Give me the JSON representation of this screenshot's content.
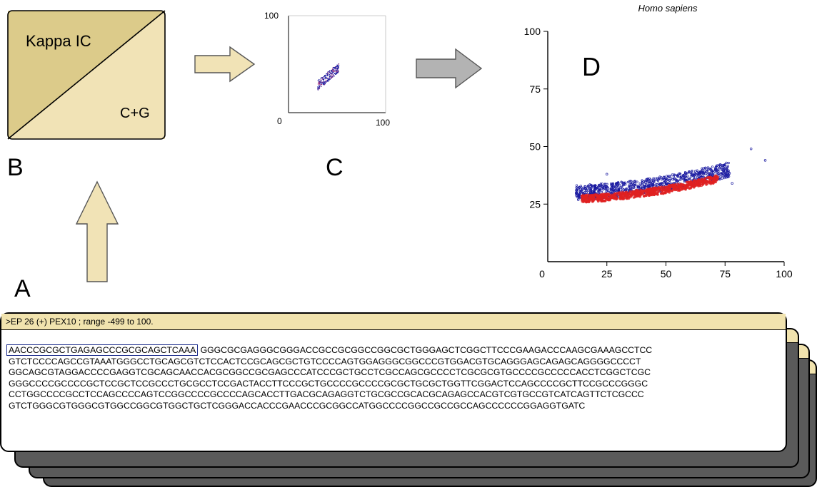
{
  "panels": {
    "a": "A",
    "b": "B",
    "c": "C",
    "d": "D"
  },
  "box_b": {
    "top_label": "Kappa IC",
    "bottom_label": "C+G",
    "fill_top": "#dccb8a",
    "fill_bottom": "#f1e3b6"
  },
  "small_plot": {
    "y_max_label": "100",
    "x_max_label": "100",
    "origin_label": "0"
  },
  "chart_data": {
    "type": "scatter",
    "title": "Homo sapiens",
    "xlim": [
      0,
      100
    ],
    "ylim": [
      0,
      100
    ],
    "x_ticks": [
      "0",
      "25",
      "50",
      "75",
      "100"
    ],
    "y_ticks": [
      "25",
      "50",
      "75",
      "100"
    ],
    "series": [
      {
        "color": "#1a1aa0",
        "points": [
          [
            12,
            31
          ],
          [
            20,
            32
          ],
          [
            30,
            31
          ],
          [
            40,
            32
          ],
          [
            50,
            34
          ],
          [
            60,
            36
          ],
          [
            70,
            38
          ],
          [
            76,
            38
          ],
          [
            78,
            34
          ],
          [
            86,
            49
          ],
          [
            92,
            44
          ],
          [
            25,
            38
          ],
          [
            35,
            35
          ],
          [
            55,
            37
          ],
          [
            65,
            39
          ]
        ]
      },
      {
        "color": "#e02020",
        "points": [
          [
            15,
            29
          ],
          [
            25,
            27
          ],
          [
            35,
            28
          ],
          [
            45,
            29
          ],
          [
            55,
            31
          ],
          [
            65,
            33
          ],
          [
            70,
            34
          ]
        ]
      }
    ]
  },
  "card": {
    "header": ">EP 26 (+) PEX10 ; range -499 to 100.",
    "motif": "AACCCGCGCTGAGAGCCCGCGCAGCTCAAA",
    "line1_rest": " GGGCGCGAGGGCGGGACCGCCGCGGCCGGCGCTGGGAGCTCGGCTTCCCGAAGACCCAAGCGAAAGCCTCC",
    "line2": "GTCTCCCCAGCCGTAAATGGGCCTGCAGCGTCTCCACTCCGCAGCGCTGTCCCCAGTGGAGGGCGGCCCGTGGACGTGCAGGGAGCAGAGCAGGGGCCCCT",
    "line3": "GGCAGCGTAGGACCCCGAGGTCGCAGCAACCACGCGGCCGCGAGCCCATCCCGCTGCCTCGCCAGCGCCCCTCGCGCGTGCCCCGCCCCCACCTCGGCTCGC",
    "line4": "GGGCCCCGCCCCGCTCCGCTCCGCCCTGCGCCTCCGACTACCTTCCCGCTGCCCCGCCCCGCGCTGCGCTGGTTCGGACTCCAGCCCCGCTTCCGCCCGGGC",
    "line5": "CCTGGCCCCGCCTCCAGCCCCAGTCCGGCCCCGCCCCAGCACCTTGACGCAGAGGTCTGCGCCGCACGCAGAGCCACGTCGTGCCGTCATCAGTTCTCGCCC",
    "line6": "GTCTGGGCGTGGGCGTGGCCGGCGTGGCTGCTCGGGACCACCCGAACCCGCGGCCATGGCCCCGGCCGCCGCCAGCCCCCCGGAGGTGATC"
  }
}
